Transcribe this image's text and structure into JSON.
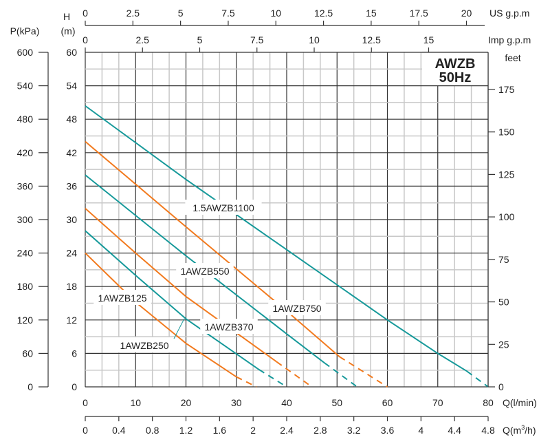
{
  "chart_data": {
    "type": "line",
    "title": "AWZB",
    "subtitle": "50Hz",
    "colors": {
      "teal": "#16999a",
      "orange": "#f27a1e",
      "grid_major": "#333333",
      "grid_minor": "#c8c8c8"
    },
    "x": {
      "label": "Q(l/min)",
      "range": [
        0,
        80
      ],
      "ticks": [
        0,
        10,
        20,
        30,
        40,
        50,
        60,
        70,
        80
      ]
    },
    "x_m3h": {
      "label_main": "Q(m",
      "label_sup": "3",
      "label_end": "/h)",
      "range": [
        0,
        4.8
      ],
      "ticks": [
        "0",
        "0.4",
        "0.8",
        "1.2",
        "1.6",
        "2",
        "2.4",
        "2.8",
        "3.2",
        "3.6",
        "4",
        "4.4",
        "4.8"
      ]
    },
    "x_us_gpm": {
      "label": "US  g.p.m",
      "ticks": [
        "0",
        "2.5",
        "5",
        "7.5",
        "10",
        "12.5",
        "15",
        "17.5",
        "20"
      ]
    },
    "x_imp_gpm": {
      "label": "Imp  g.p.m",
      "ticks": [
        "0",
        "2.5",
        "5",
        "7.5",
        "10",
        "12.5",
        "15"
      ]
    },
    "y": {
      "label_1": "H",
      "label_2": "(m)",
      "range": [
        0,
        60
      ],
      "ticks": [
        0,
        6,
        12,
        18,
        24,
        30,
        36,
        42,
        48,
        54,
        60
      ]
    },
    "y_kpa": {
      "label": "P(kPa)",
      "ticks": [
        0,
        60,
        120,
        180,
        240,
        300,
        360,
        420,
        480,
        540,
        600
      ]
    },
    "y_feet": {
      "label": "feet",
      "ticks": [
        0,
        25,
        50,
        75,
        100,
        125,
        150,
        175
      ]
    },
    "series": [
      {
        "name": "1AWZB125",
        "color": "orange",
        "solid": [
          [
            0,
            24
          ],
          [
            10,
            15.2
          ],
          [
            20,
            7.8
          ],
          [
            30,
            1.8
          ]
        ],
        "dashed": [
          [
            30,
            1.8
          ],
          [
            34,
            0
          ]
        ]
      },
      {
        "name": "1AWZB250",
        "color": "teal",
        "solid": [
          [
            0,
            28
          ],
          [
            10,
            20
          ],
          [
            20,
            12.2
          ],
          [
            34.5,
            3.1
          ]
        ],
        "dashed": [
          [
            34.5,
            3.1
          ],
          [
            40,
            0
          ]
        ]
      },
      {
        "name": "1AWZB370",
        "color": "orange",
        "solid": [
          [
            0,
            32
          ],
          [
            10,
            24
          ],
          [
            20,
            16.2
          ],
          [
            38,
            4.5
          ]
        ],
        "dashed": [
          [
            38,
            4.5
          ],
          [
            45,
            0
          ]
        ]
      },
      {
        "name": "1AWZB550",
        "color": "teal",
        "solid": [
          [
            0,
            38
          ],
          [
            20,
            23.5
          ],
          [
            40,
            9.5
          ],
          [
            47.5,
            4.3
          ]
        ],
        "dashed": [
          [
            47.5,
            4.3
          ],
          [
            54,
            0
          ]
        ]
      },
      {
        "name": "1AWZB750",
        "color": "orange",
        "solid": [
          [
            0,
            44
          ],
          [
            20,
            28.7
          ],
          [
            40,
            13.6
          ],
          [
            50.5,
            5.4
          ]
        ],
        "dashed": [
          [
            50.5,
            5.4
          ],
          [
            60,
            0
          ]
        ]
      },
      {
        "name": "1.5AWZB1100",
        "color": "teal",
        "solid": [
          [
            0,
            50.4
          ],
          [
            20,
            37.2
          ],
          [
            40,
            24.6
          ],
          [
            60,
            12
          ],
          [
            70,
            6
          ],
          [
            75.8,
            2.8
          ]
        ],
        "dashed": [
          [
            75.8,
            2.8
          ],
          [
            80,
            0
          ]
        ]
      }
    ],
    "annotations": [
      "1.5AWZB1100",
      "1AWZB550",
      "1AWZB750",
      "1AWZB125",
      "1AWZB370",
      "1AWZB250"
    ],
    "grid": true
  }
}
